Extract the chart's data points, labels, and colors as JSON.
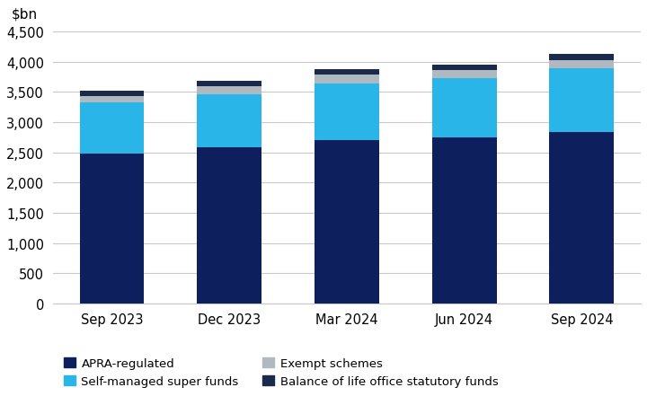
{
  "categories": [
    "Sep 2023",
    "Dec 2023",
    "Mar 2024",
    "Jun 2024",
    "Sep 2024"
  ],
  "apra_regulated": [
    2480,
    2590,
    2700,
    2740,
    2840
  ],
  "self_managed": [
    840,
    870,
    940,
    980,
    1050
  ],
  "exempt_schemes": [
    115,
    130,
    145,
    145,
    130
  ],
  "balance_life": [
    85,
    95,
    95,
    90,
    100
  ],
  "colors": {
    "apra_regulated": "#0d1f5c",
    "self_managed": "#29b5e8",
    "exempt_schemes": "#b0b8c0",
    "balance_life": "#1a2a4a"
  },
  "ylabel_text": "$bn",
  "ylim": [
    0,
    4500
  ],
  "yticks": [
    0,
    500,
    1000,
    1500,
    2000,
    2500,
    3000,
    3500,
    4000,
    4500
  ],
  "legend": {
    "apra_regulated": "APRA-regulated",
    "self_managed": "Self-managed super funds",
    "exempt_schemes": "Exempt schemes",
    "balance_life": "Balance of life office statutory funds"
  },
  "background_color": "#ffffff",
  "bar_width": 0.55,
  "grid_color": "#c8c8c8"
}
